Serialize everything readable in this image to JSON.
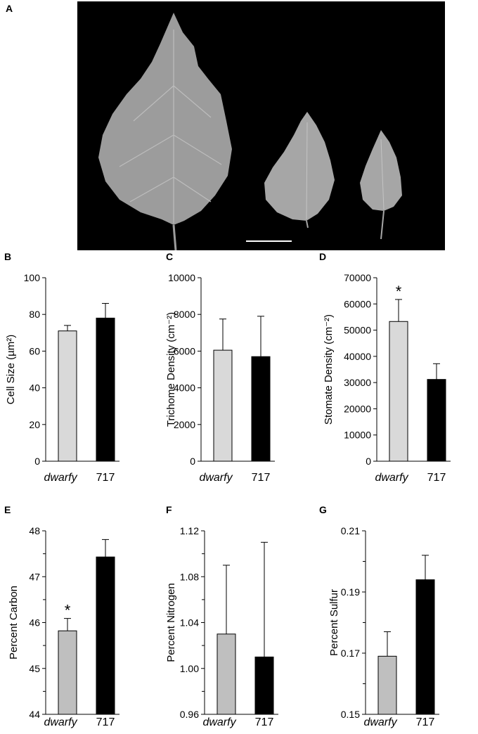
{
  "figure": {
    "panel_A_label": "A"
  },
  "chart_data": [
    {
      "panel": "B",
      "type": "bar",
      "categories": [
        "dwarfy",
        "717"
      ],
      "values": [
        71,
        78
      ],
      "errors": [
        3,
        8
      ],
      "ylabel": "Cell Size (µm²)",
      "ylim": [
        0,
        100
      ],
      "yticks": [
        0,
        20,
        40,
        60,
        80,
        100
      ],
      "colors": [
        "#d9d9d9",
        "#000000"
      ],
      "significant": [
        false,
        false
      ]
    },
    {
      "panel": "C",
      "type": "bar",
      "categories": [
        "dwarfy",
        "717"
      ],
      "values": [
        6050,
        5700
      ],
      "errors": [
        1700,
        2200
      ],
      "ylabel": "Trichome Density (cm⁻²)",
      "ylim": [
        0,
        10000
      ],
      "yticks": [
        0,
        2000,
        4000,
        6000,
        8000,
        10000
      ],
      "colors": [
        "#d9d9d9",
        "#000000"
      ],
      "significant": [
        false,
        false
      ]
    },
    {
      "panel": "D",
      "type": "bar",
      "categories": [
        "dwarfy",
        "717"
      ],
      "values": [
        53300,
        31200
      ],
      "errors": [
        8400,
        6000
      ],
      "ylabel": "Stomate Density (cm⁻²)",
      "ylim": [
        0,
        70000
      ],
      "yticks": [
        0,
        10000,
        20000,
        30000,
        40000,
        50000,
        60000,
        70000
      ],
      "colors": [
        "#d9d9d9",
        "#000000"
      ],
      "significant": [
        true,
        false
      ]
    },
    {
      "panel": "E",
      "type": "bar",
      "categories": [
        "dwarfy",
        "717"
      ],
      "values": [
        45.82,
        47.43
      ],
      "errors": [
        0.27,
        0.38
      ],
      "ylabel": "Percent Carbon",
      "ylim": [
        44,
        48
      ],
      "yticks": [
        44,
        45,
        46,
        47,
        48
      ],
      "colors": [
        "#bfbfbf",
        "#000000"
      ],
      "significant": [
        true,
        false
      ]
    },
    {
      "panel": "F",
      "type": "bar",
      "categories": [
        "dwarfy",
        "717"
      ],
      "values": [
        1.03,
        1.01
      ],
      "errors": [
        0.06,
        0.1
      ],
      "ylabel": "Percent Nitrogen",
      "ylim": [
        0.96,
        1.12
      ],
      "yticks": [
        0.96,
        1.0,
        1.04,
        1.08,
        1.12
      ],
      "tickDecimals": 2,
      "colors": [
        "#bfbfbf",
        "#000000"
      ],
      "significant": [
        false,
        false
      ]
    },
    {
      "panel": "G",
      "type": "bar",
      "categories": [
        "dwarfy",
        "717"
      ],
      "values": [
        0.169,
        0.194
      ],
      "errors": [
        0.008,
        0.008
      ],
      "ylabel": "Percent Sulfur",
      "ylim": [
        0.15,
        0.21
      ],
      "yticks": [
        0.15,
        0.17,
        0.19,
        0.21
      ],
      "tickDecimals": 2,
      "colors": [
        "#bfbfbf",
        "#000000"
      ],
      "significant": [
        false,
        false
      ]
    }
  ]
}
